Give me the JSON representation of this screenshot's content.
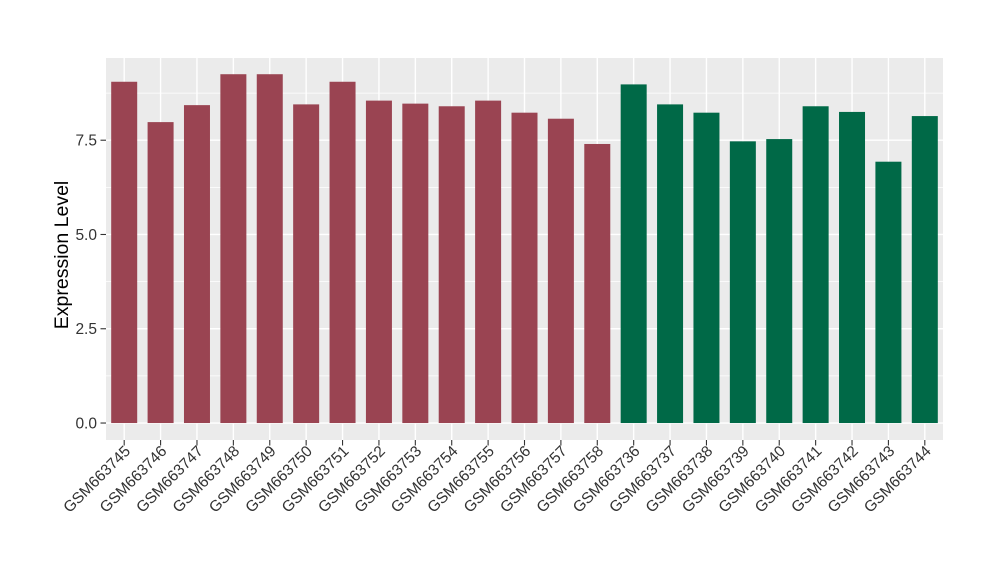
{
  "figure": {
    "background": "#FFFFFF",
    "panel_background": "#EBEBEB",
    "grid_color": "#FFFFFF",
    "tick_mark_color": "#333333",
    "tick_label_color": "#333333",
    "axis_title_color": "#000000"
  },
  "chart_data": {
    "type": "bar",
    "title": "",
    "xlabel": "",
    "ylabel": "Expression Level",
    "categories": [
      "GSM663745",
      "GSM663746",
      "GSM663747",
      "GSM663748",
      "GSM663749",
      "GSM663750",
      "GSM663751",
      "GSM663752",
      "GSM663753",
      "GSM663754",
      "GSM663755",
      "GSM663756",
      "GSM663757",
      "GSM663758",
      "GSM663736",
      "GSM663737",
      "GSM663738",
      "GSM663739",
      "GSM663740",
      "GSM663741",
      "GSM663742",
      "GSM663743",
      "GSM663744"
    ],
    "values": [
      9.05,
      7.98,
      8.43,
      9.25,
      9.25,
      8.45,
      9.05,
      8.55,
      8.47,
      8.4,
      8.55,
      8.23,
      8.07,
      7.4,
      8.98,
      8.45,
      8.23,
      7.47,
      7.53,
      8.4,
      8.25,
      6.93,
      8.14
    ],
    "bar_colors": [
      "#9A4452",
      "#9A4452",
      "#9A4452",
      "#9A4452",
      "#9A4452",
      "#9A4452",
      "#9A4452",
      "#9A4452",
      "#9A4452",
      "#9A4452",
      "#9A4452",
      "#9A4452",
      "#9A4452",
      "#9A4452",
      "#006947",
      "#006947",
      "#006947",
      "#006947",
      "#006947",
      "#006947",
      "#006947",
      "#006947",
      "#006947"
    ],
    "group_colors": {
      "left_group": "#9A4452",
      "right_group": "#006947"
    },
    "ylim": [
      -0.45,
      9.68
    ],
    "yticks": [
      0.0,
      2.5,
      5.0,
      7.5
    ],
    "ytick_labels": [
      "0.0",
      "2.5",
      "5.0",
      "7.5"
    ],
    "yticks_minor": [
      1.25,
      3.75,
      6.25,
      8.75
    ],
    "grid": true,
    "legend": false
  }
}
